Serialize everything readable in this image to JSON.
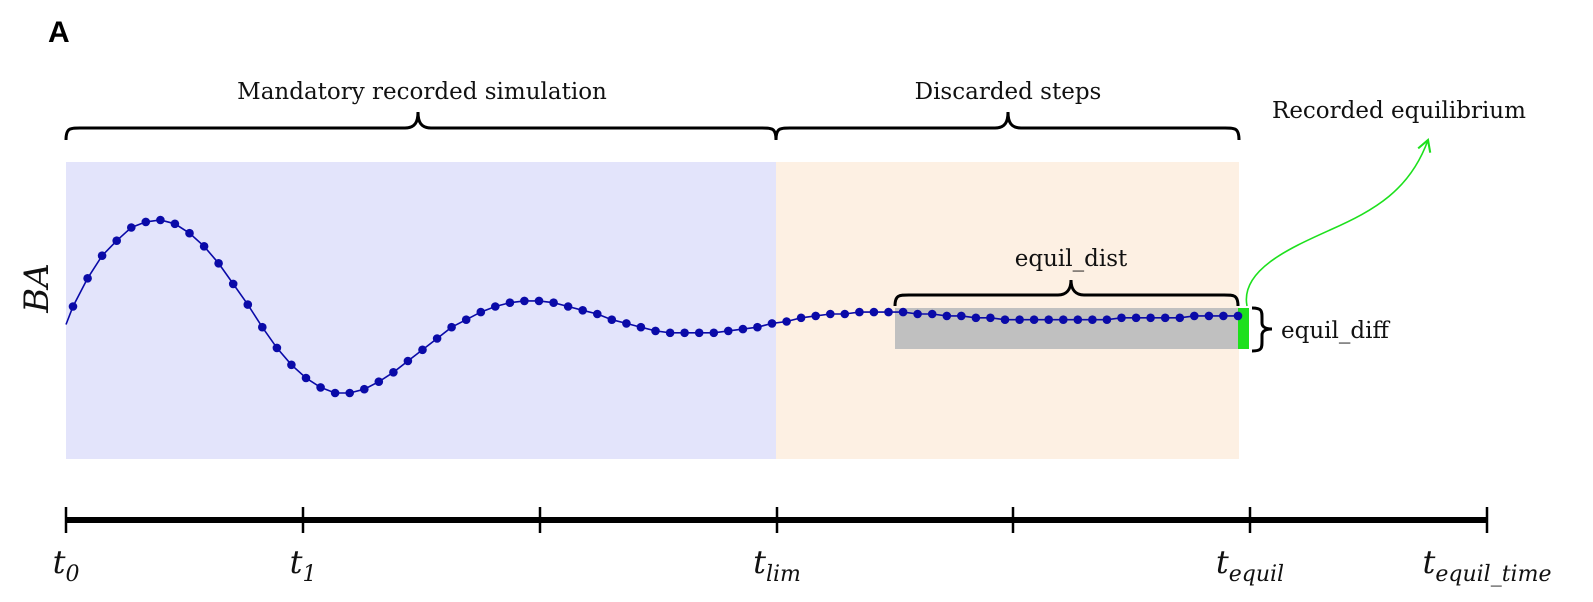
{
  "panel_label": "A",
  "y_axis_label": "BA",
  "regions": [
    {
      "name": "mandatory",
      "label": "Mandatory recorded simulation",
      "color": "#e3e4fb"
    },
    {
      "name": "discarded",
      "label": "Discarded steps",
      "color": "#fdf0e3"
    }
  ],
  "annotations": {
    "recorded_equilibrium": "Recorded equilibrium",
    "equil_dist": "equil_dist",
    "equil_diff": "equil_diff"
  },
  "timeline": {
    "ticks": [
      {
        "base": "t",
        "sub": "0"
      },
      {
        "base": "t",
        "sub": "1"
      },
      {
        "base": "",
        "sub": ""
      },
      {
        "base": "t",
        "sub": "lim"
      },
      {
        "base": "",
        "sub": ""
      },
      {
        "base": "t",
        "sub": "equil"
      },
      {
        "base": "t",
        "sub": "equil_time"
      }
    ]
  },
  "colors": {
    "series": "#0a0aa8",
    "equil_band": "#c0c0c0",
    "equil_marker": "#1de01d",
    "arrow": "#1de01d",
    "axis": "#000000"
  },
  "chart_data": {
    "type": "line",
    "description_free": true,
    "x_range": [
      0,
      80
    ],
    "series": [
      {
        "values": [
          0.35,
          0.5,
          0.62,
          0.7,
          0.77,
          0.8,
          0.81,
          0.79,
          0.74,
          0.67,
          0.58,
          0.47,
          0.36,
          0.24,
          0.13,
          0.04,
          -0.03,
          -0.08,
          -0.11,
          -0.11,
          -0.09,
          -0.05,
          0.0,
          0.06,
          0.12,
          0.18,
          0.24,
          0.28,
          0.32,
          0.35,
          0.37,
          0.38,
          0.38,
          0.37,
          0.35,
          0.33,
          0.31,
          0.28,
          0.26,
          0.24,
          0.22,
          0.21,
          0.21,
          0.21,
          0.21,
          0.22,
          0.23,
          0.24,
          0.26,
          0.27,
          0.29,
          0.3,
          0.31,
          0.31,
          0.32,
          0.32,
          0.32,
          0.32,
          0.31,
          0.31,
          0.3,
          0.3,
          0.29,
          0.29,
          0.28,
          0.28,
          0.28,
          0.28,
          0.28,
          0.28,
          0.28,
          0.28,
          0.29,
          0.29,
          0.29,
          0.29,
          0.29,
          0.3,
          0.3,
          0.3,
          0.3
        ]
      }
    ]
  }
}
